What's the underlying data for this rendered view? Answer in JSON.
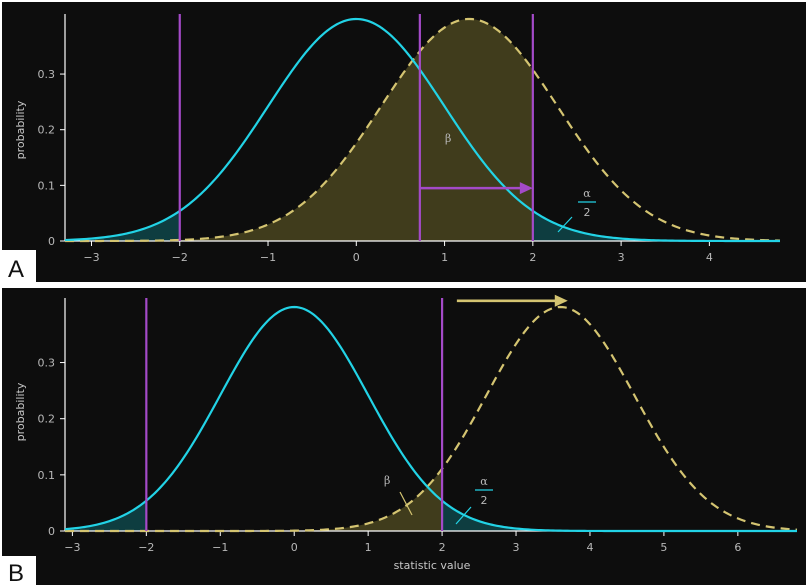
{
  "colors": {
    "background": "#0d0d0d",
    "frame": "#ffffff",
    "null_curve": "#22d3e6",
    "alt_curve": "#d4c471",
    "critical_line": "#a44ac8",
    "beta_fill": "#4a4520",
    "alpha_fill": "#0e3d40",
    "axis_text": "#b8b8b8"
  },
  "chart_data": [
    {
      "panel": "A",
      "type": "line",
      "ylabel": "probability",
      "xlabel": "",
      "xlim": [
        -3.3,
        4.8
      ],
      "ylim": [
        0,
        0.4
      ],
      "x_ticks": [
        -3,
        -2,
        -1,
        0,
        1,
        2,
        3,
        4
      ],
      "x_tick_labels": [
        "−3",
        "−2",
        "−1",
        "0",
        "1",
        "2",
        "3",
        "4"
      ],
      "y_ticks": [
        0,
        0.1,
        0.2,
        0.3
      ],
      "y_tick_labels": [
        "0",
        "0.1",
        "0.2",
        "0.3"
      ],
      "series": [
        {
          "role": "null",
          "distribution": "normal",
          "mean": 0,
          "sd": 1,
          "style": "solid"
        },
        {
          "role": "alternative",
          "distribution": "normal",
          "mean": 1.28,
          "sd": 1,
          "style": "dashed"
        }
      ],
      "critical_values": [
        -2.0,
        2.0
      ],
      "effect_marker_x": 0.72,
      "arrow": {
        "from": 0.72,
        "to": 2.0,
        "y": 0.095,
        "color": "critical_line"
      },
      "annotations": {
        "beta": "β",
        "alpha_num": "α",
        "alpha_den": "2"
      }
    },
    {
      "panel": "B",
      "type": "line",
      "ylabel": "probability",
      "xlabel": "statistic value",
      "xlim": [
        -3.1,
        6.8
      ],
      "ylim": [
        0,
        0.4
      ],
      "x_ticks": [
        -3,
        -2,
        -1,
        0,
        1,
        2,
        3,
        4,
        5,
        6
      ],
      "x_tick_labels": [
        "−3",
        "−2",
        "−1",
        "0",
        "1",
        "2",
        "3",
        "4",
        "5",
        "6"
      ],
      "y_ticks": [
        0,
        0.1,
        0.2,
        0.3
      ],
      "y_tick_labels": [
        "0",
        "0.1",
        "0.2",
        "0.3"
      ],
      "series": [
        {
          "role": "null",
          "distribution": "normal",
          "mean": 0,
          "sd": 1,
          "style": "solid"
        },
        {
          "role": "alternative",
          "distribution": "normal",
          "mean": 3.6,
          "sd": 1,
          "style": "dashed"
        }
      ],
      "critical_values": [
        -2.0,
        2.0
      ],
      "arrow": {
        "from": 2.2,
        "to": 3.7,
        "y": 0.41,
        "color": "alt_curve"
      },
      "annotations": {
        "beta": "β",
        "alpha_num": "α",
        "alpha_den": "2"
      }
    }
  ],
  "panel_letters": [
    "A",
    "B"
  ]
}
